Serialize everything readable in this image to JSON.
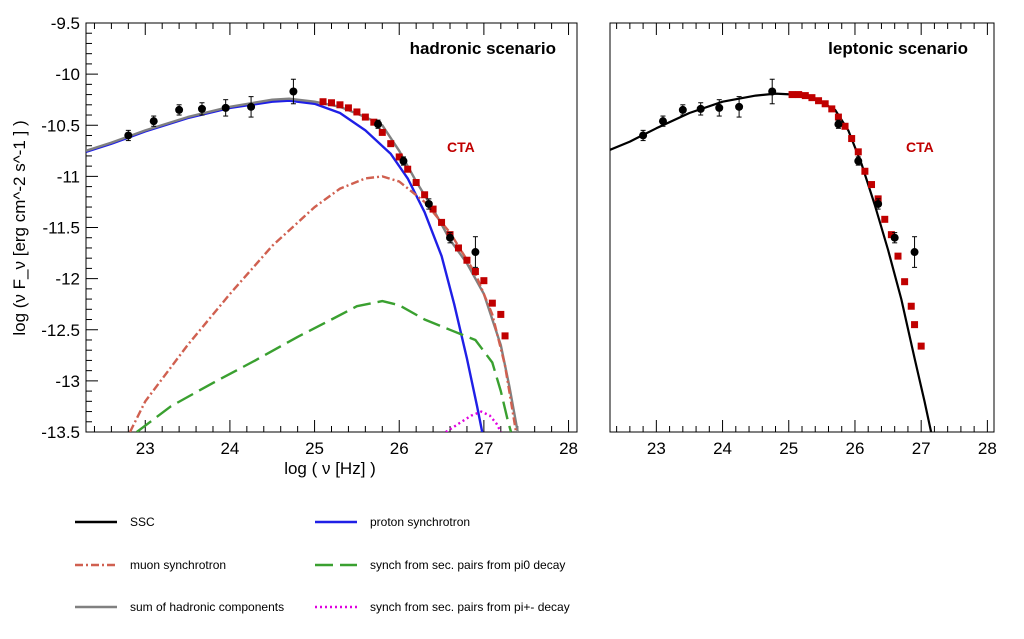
{
  "chart_data": [
    {
      "type": "line",
      "title": "hadronic scenario",
      "annotation": "CTA",
      "xlabel": "log ( ν [Hz] )",
      "ylabel": "log (ν F_ν [erg cm^-2 s^-1 ] )",
      "xlim": [
        22.3,
        28.1
      ],
      "ylim": [
        -13.5,
        -9.5
      ],
      "x_ticks": [
        "23",
        "24",
        "25",
        "26",
        "27",
        "28"
      ],
      "y_ticks": [
        "-9.5",
        "-10",
        "-10.5",
        "-11",
        "-11.5",
        "-12",
        "-12.5",
        "-13",
        "-13.5"
      ],
      "series": [
        {
          "name": "proton synchrotron",
          "color": "#1f1fe6",
          "style": "solid",
          "points": [
            [
              22.3,
              -10.76
            ],
            [
              22.6,
              -10.68
            ],
            [
              23.0,
              -10.56
            ],
            [
              23.5,
              -10.43
            ],
            [
              24.0,
              -10.33
            ],
            [
              24.5,
              -10.27
            ],
            [
              24.7,
              -10.26
            ],
            [
              25.0,
              -10.29
            ],
            [
              25.3,
              -10.38
            ],
            [
              25.6,
              -10.55
            ],
            [
              25.9,
              -10.78
            ],
            [
              26.1,
              -11.02
            ],
            [
              26.3,
              -11.35
            ],
            [
              26.5,
              -11.78
            ],
            [
              26.65,
              -12.25
            ],
            [
              26.8,
              -12.78
            ],
            [
              26.92,
              -13.25
            ],
            [
              26.98,
              -13.5
            ]
          ]
        },
        {
          "name": "sum of hadronic components",
          "color": "#808080",
          "style": "solid",
          "points": [
            [
              22.3,
              -10.75
            ],
            [
              22.6,
              -10.67
            ],
            [
              23.0,
              -10.55
            ],
            [
              23.5,
              -10.42
            ],
            [
              24.0,
              -10.32
            ],
            [
              24.5,
              -10.25
            ],
            [
              24.7,
              -10.24
            ],
            [
              25.0,
              -10.27
            ],
            [
              25.3,
              -10.32
            ],
            [
              25.6,
              -10.42
            ],
            [
              25.8,
              -10.5
            ],
            [
              26.0,
              -10.75
            ],
            [
              26.2,
              -11.05
            ],
            [
              26.4,
              -11.32
            ],
            [
              26.6,
              -11.62
            ],
            [
              26.8,
              -11.85
            ],
            [
              27.0,
              -12.15
            ],
            [
              27.2,
              -12.65
            ],
            [
              27.3,
              -13.05
            ],
            [
              27.4,
              -13.5
            ]
          ]
        },
        {
          "name": "muon synchrotron",
          "color": "#d06050",
          "style": "dashdot",
          "points": [
            [
              22.82,
              -13.5
            ],
            [
              23.0,
              -13.2
            ],
            [
              23.5,
              -12.65
            ],
            [
              24.0,
              -12.15
            ],
            [
              24.5,
              -11.68
            ],
            [
              25.0,
              -11.3
            ],
            [
              25.3,
              -11.12
            ],
            [
              25.6,
              -11.02
            ],
            [
              25.8,
              -11.0
            ],
            [
              26.0,
              -11.05
            ],
            [
              26.3,
              -11.25
            ],
            [
              26.6,
              -11.55
            ],
            [
              26.9,
              -11.95
            ],
            [
              27.1,
              -12.35
            ],
            [
              27.25,
              -12.85
            ],
            [
              27.33,
              -13.25
            ],
            [
              27.38,
              -13.5
            ]
          ]
        },
        {
          "name": "synch from sec. pairs from pi0 decay",
          "color": "#3aa030",
          "style": "longdash",
          "points": [
            [
              22.9,
              -13.5
            ],
            [
              23.3,
              -13.25
            ],
            [
              23.8,
              -13.02
            ],
            [
              24.3,
              -12.8
            ],
            [
              24.8,
              -12.57
            ],
            [
              25.2,
              -12.4
            ],
            [
              25.5,
              -12.27
            ],
            [
              25.8,
              -12.22
            ],
            [
              26.0,
              -12.26
            ],
            [
              26.3,
              -12.4
            ],
            [
              26.6,
              -12.5
            ],
            [
              26.9,
              -12.6
            ],
            [
              27.1,
              -12.82
            ],
            [
              27.2,
              -13.1
            ],
            [
              27.28,
              -13.38
            ],
            [
              27.32,
              -13.5
            ]
          ]
        },
        {
          "name": "synch from sec. pairs from pi+- decay",
          "color": "#e000e0",
          "style": "dotted",
          "points": [
            [
              26.55,
              -13.5
            ],
            [
              26.7,
              -13.42
            ],
            [
              26.85,
              -13.34
            ],
            [
              26.97,
              -13.3
            ],
            [
              27.07,
              -13.34
            ],
            [
              27.15,
              -13.42
            ],
            [
              27.2,
              -13.5
            ]
          ]
        }
      ],
      "data_points": {
        "color": "#000000",
        "points": [
          [
            22.8,
            -10.6,
            0.05
          ],
          [
            23.1,
            -10.46,
            0.05
          ],
          [
            23.4,
            -10.35,
            0.05
          ],
          [
            23.67,
            -10.34,
            0.06
          ],
          [
            23.95,
            -10.33,
            0.08
          ],
          [
            24.25,
            -10.32,
            0.1
          ],
          [
            24.75,
            -10.17,
            0.12
          ],
          [
            25.75,
            -10.49,
            0.04
          ],
          [
            26.05,
            -10.85,
            0.04
          ],
          [
            26.35,
            -11.27,
            0.05
          ],
          [
            26.6,
            -11.6,
            0.05
          ],
          [
            26.9,
            -11.74,
            0.15
          ]
        ]
      },
      "cta_points": {
        "color": "#c00000",
        "points": [
          [
            25.1,
            -10.27
          ],
          [
            25.2,
            -10.28
          ],
          [
            25.3,
            -10.3
          ],
          [
            25.4,
            -10.33
          ],
          [
            25.5,
            -10.37
          ],
          [
            25.6,
            -10.42
          ],
          [
            25.7,
            -10.47
          ],
          [
            25.8,
            -10.57
          ],
          [
            25.9,
            -10.68
          ],
          [
            26.0,
            -10.81
          ],
          [
            26.1,
            -10.93
          ],
          [
            26.2,
            -11.06
          ],
          [
            26.3,
            -11.18
          ],
          [
            26.4,
            -11.32
          ],
          [
            26.5,
            -11.45
          ],
          [
            26.6,
            -11.57
          ],
          [
            26.7,
            -11.7
          ],
          [
            26.8,
            -11.82
          ],
          [
            26.9,
            -11.93
          ],
          [
            27.0,
            -12.02
          ],
          [
            27.1,
            -12.24
          ],
          [
            27.2,
            -12.35
          ],
          [
            27.25,
            -12.56
          ]
        ]
      }
    },
    {
      "type": "line",
      "title": "leptonic scenario",
      "annotation": "CTA",
      "xlim": [
        22.3,
        28.1
      ],
      "ylim": [
        -13.5,
        -9.5
      ],
      "x_ticks": [
        "23",
        "24",
        "25",
        "26",
        "27",
        "28"
      ],
      "series": [
        {
          "name": "SSC",
          "color": "#000000",
          "style": "solid",
          "points": [
            [
              22.3,
              -10.74
            ],
            [
              22.6,
              -10.66
            ],
            [
              23.0,
              -10.53
            ],
            [
              23.5,
              -10.38
            ],
            [
              24.0,
              -10.27
            ],
            [
              24.5,
              -10.21
            ],
            [
              24.8,
              -10.19
            ],
            [
              25.1,
              -10.2
            ],
            [
              25.4,
              -10.24
            ],
            [
              25.7,
              -10.35
            ],
            [
              25.9,
              -10.55
            ],
            [
              26.1,
              -10.88
            ],
            [
              26.3,
              -11.28
            ],
            [
              26.5,
              -11.72
            ],
            [
              26.7,
              -12.2
            ],
            [
              26.9,
              -12.78
            ],
            [
              27.05,
              -13.2
            ],
            [
              27.15,
              -13.5
            ]
          ]
        }
      ],
      "data_points": {
        "color": "#000000",
        "points": [
          [
            22.8,
            -10.6,
            0.05
          ],
          [
            23.1,
            -10.46,
            0.05
          ],
          [
            23.4,
            -10.35,
            0.05
          ],
          [
            23.67,
            -10.34,
            0.06
          ],
          [
            23.95,
            -10.33,
            0.08
          ],
          [
            24.25,
            -10.32,
            0.1
          ],
          [
            24.75,
            -10.17,
            0.12
          ],
          [
            25.75,
            -10.49,
            0.04
          ],
          [
            26.05,
            -10.85,
            0.04
          ],
          [
            26.35,
            -11.27,
            0.05
          ],
          [
            26.6,
            -11.6,
            0.05
          ],
          [
            26.9,
            -11.74,
            0.15
          ]
        ]
      },
      "cta_points": {
        "color": "#c00000",
        "points": [
          [
            25.05,
            -10.2
          ],
          [
            25.15,
            -10.2
          ],
          [
            25.25,
            -10.21
          ],
          [
            25.35,
            -10.23
          ],
          [
            25.45,
            -10.26
          ],
          [
            25.55,
            -10.29
          ],
          [
            25.65,
            -10.34
          ],
          [
            25.75,
            -10.42
          ],
          [
            25.85,
            -10.51
          ],
          [
            25.95,
            -10.63
          ],
          [
            26.05,
            -10.76
          ],
          [
            26.15,
            -10.95
          ],
          [
            26.25,
            -11.08
          ],
          [
            26.35,
            -11.22
          ],
          [
            26.45,
            -11.42
          ],
          [
            26.55,
            -11.57
          ],
          [
            26.65,
            -11.78
          ],
          [
            26.75,
            -12.03
          ],
          [
            26.85,
            -12.27
          ],
          [
            26.9,
            -12.45
          ],
          [
            27.0,
            -12.66
          ]
        ]
      }
    }
  ],
  "legend": {
    "items": [
      {
        "label": "SSC",
        "color": "#000000",
        "style": "solid"
      },
      {
        "label": "proton synchrotron",
        "color": "#1f1fe6",
        "style": "solid"
      },
      {
        "label": "muon synchrotron",
        "color": "#d06050",
        "style": "dashdot"
      },
      {
        "label": "synch from sec. pairs from pi0 decay",
        "color": "#3aa030",
        "style": "longdash"
      },
      {
        "label": "sum of hadronic components",
        "color": "#808080",
        "style": "solid"
      },
      {
        "label": "synch from sec. pairs from pi+- decay",
        "color": "#e000e0",
        "style": "dotted"
      }
    ]
  }
}
